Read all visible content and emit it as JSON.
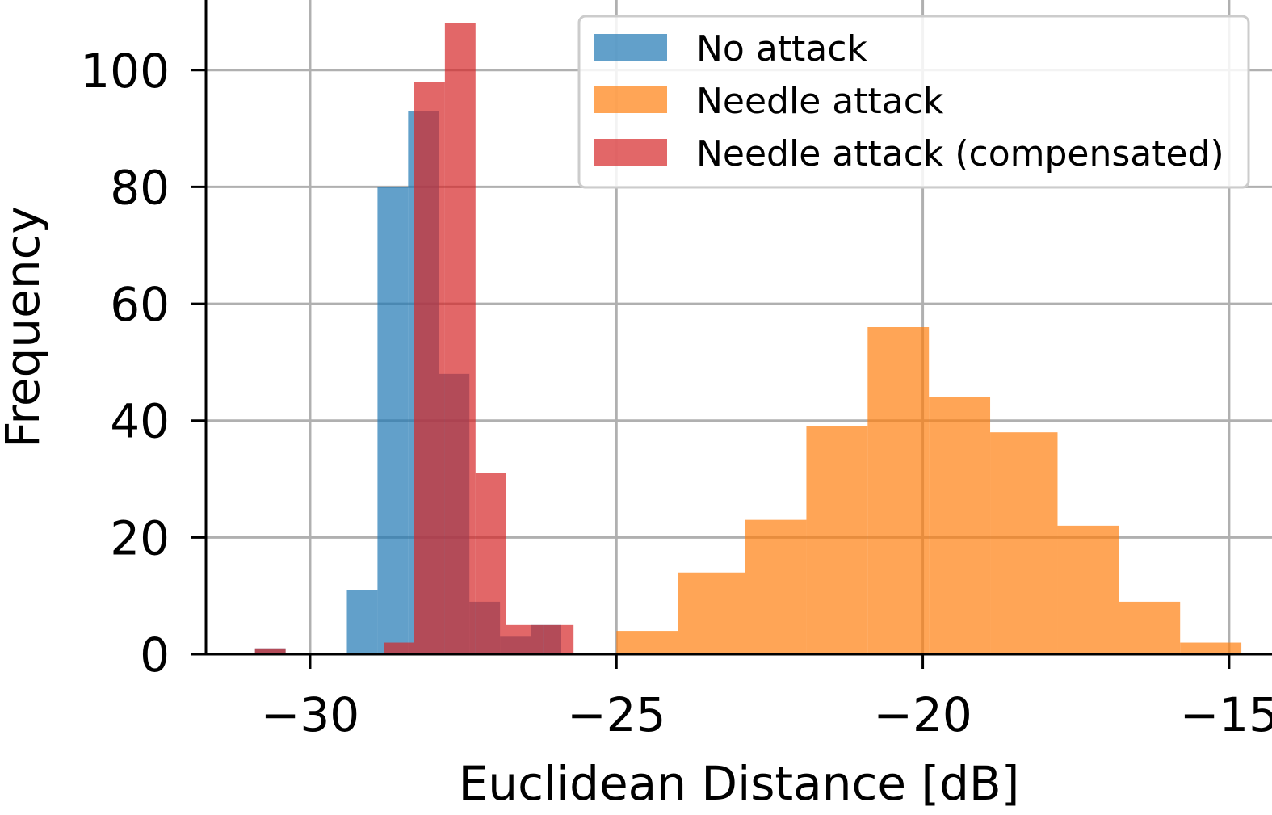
{
  "chart_data": {
    "type": "bar",
    "histogram": true,
    "xlabel": "Euclidean Distance [dB]",
    "ylabel": "Frequency",
    "title": "",
    "xlim": [
      -31.7,
      -14.3
    ],
    "ylim": [
      0,
      112
    ],
    "xticks": [
      -30,
      -25,
      -20,
      -15
    ],
    "xtick_labels": [
      "−30",
      "−25",
      "−20",
      "−15"
    ],
    "yticks": [
      0,
      20,
      40,
      60,
      80,
      100
    ],
    "ytick_labels": [
      "0",
      "20",
      "40",
      "60",
      "80",
      "100"
    ],
    "grid": true,
    "legend": "top-right",
    "series": [
      {
        "name": "No attack",
        "color": "#1f77b4",
        "alpha": 0.7,
        "bins": [
          {
            "x0": -30.9,
            "x1": -30.4,
            "value": 1
          },
          {
            "x0": -29.4,
            "x1": -28.9,
            "value": 11
          },
          {
            "x0": -28.9,
            "x1": -28.4,
            "value": 80
          },
          {
            "x0": -28.4,
            "x1": -27.9,
            "value": 93
          },
          {
            "x0": -27.9,
            "x1": -27.4,
            "value": 48
          },
          {
            "x0": -27.4,
            "x1": -26.9,
            "value": 9
          },
          {
            "x0": -26.9,
            "x1": -26.4,
            "value": 3
          },
          {
            "x0": -26.4,
            "x1": -25.9,
            "value": 5
          }
        ]
      },
      {
        "name": "Needle attack",
        "color": "#ff7f0e",
        "alpha": 0.7,
        "bins": [
          {
            "x0": -25.0,
            "x1": -24.0,
            "value": 4
          },
          {
            "x0": -24.0,
            "x1": -22.9,
            "value": 14
          },
          {
            "x0": -22.9,
            "x1": -21.9,
            "value": 23
          },
          {
            "x0": -21.9,
            "x1": -20.9,
            "value": 39
          },
          {
            "x0": -20.9,
            "x1": -19.9,
            "value": 56
          },
          {
            "x0": -19.9,
            "x1": -18.9,
            "value": 44
          },
          {
            "x0": -18.9,
            "x1": -17.8,
            "value": 38
          },
          {
            "x0": -17.8,
            "x1": -16.8,
            "value": 22
          },
          {
            "x0": -16.8,
            "x1": -15.8,
            "value": 9
          },
          {
            "x0": -15.8,
            "x1": -14.8,
            "value": 2
          }
        ]
      },
      {
        "name": "Needle attack (compensated)",
        "color": "#d62728",
        "alpha": 0.7,
        "bins": [
          {
            "x0": -30.9,
            "x1": -30.4,
            "value": 1
          },
          {
            "x0": -28.8,
            "x1": -28.3,
            "value": 2
          },
          {
            "x0": -28.3,
            "x1": -27.8,
            "value": 98
          },
          {
            "x0": -27.8,
            "x1": -27.3,
            "value": 108
          },
          {
            "x0": -27.3,
            "x1": -26.8,
            "value": 31
          },
          {
            "x0": -26.8,
            "x1": -26.2,
            "value": 5
          },
          {
            "x0": -26.2,
            "x1": -25.7,
            "value": 5
          }
        ]
      }
    ]
  }
}
